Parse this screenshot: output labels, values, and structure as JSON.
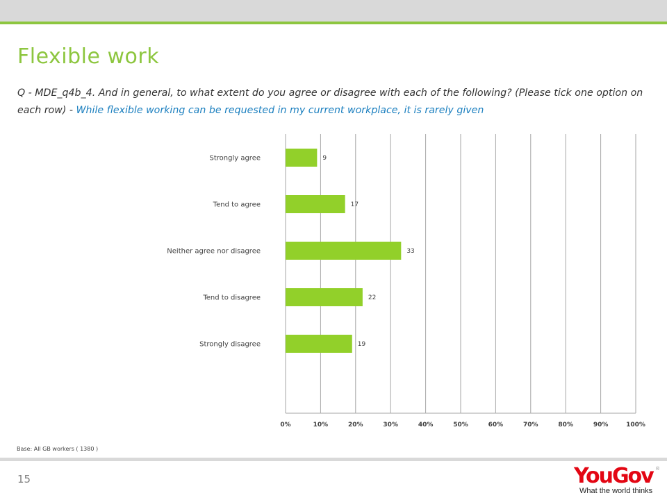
{
  "header": {
    "title": "Flexible work",
    "question_prefix": "Q - MDE_q4b_4. And in general, to what extent do you agree or disagree with each of the following? (Please tick one option on each row) - ",
    "question_statement": "While flexible working can be requested in my current workplace, it is rarely given"
  },
  "footer": {
    "base_note": "Base: All GB workers ( 1380 )",
    "page_number": "15",
    "logo_text": "YouGov",
    "logo_registered": "®",
    "tagline": "What the world thinks"
  },
  "colors": {
    "accent": "#8dc63f",
    "bar": "#92d02a",
    "highlight_text": "#1b7fbf",
    "logo_red": "#e30613"
  },
  "chart_data": {
    "type": "bar",
    "orientation": "horizontal",
    "categories": [
      "Strongly agree",
      "Tend to agree",
      "Neither agree nor disagree",
      "Tend to disagree",
      "Strongly disagree"
    ],
    "values": [
      9,
      17,
      33,
      22,
      19
    ],
    "value_labels": [
      "9",
      "17",
      "33",
      "22",
      "19"
    ],
    "x_ticks": [
      "0%",
      "10%",
      "20%",
      "30%",
      "40%",
      "50%",
      "60%",
      "70%",
      "80%",
      "90%",
      "100%"
    ],
    "xlim": [
      0,
      100
    ],
    "grid": true,
    "legend": "none"
  }
}
